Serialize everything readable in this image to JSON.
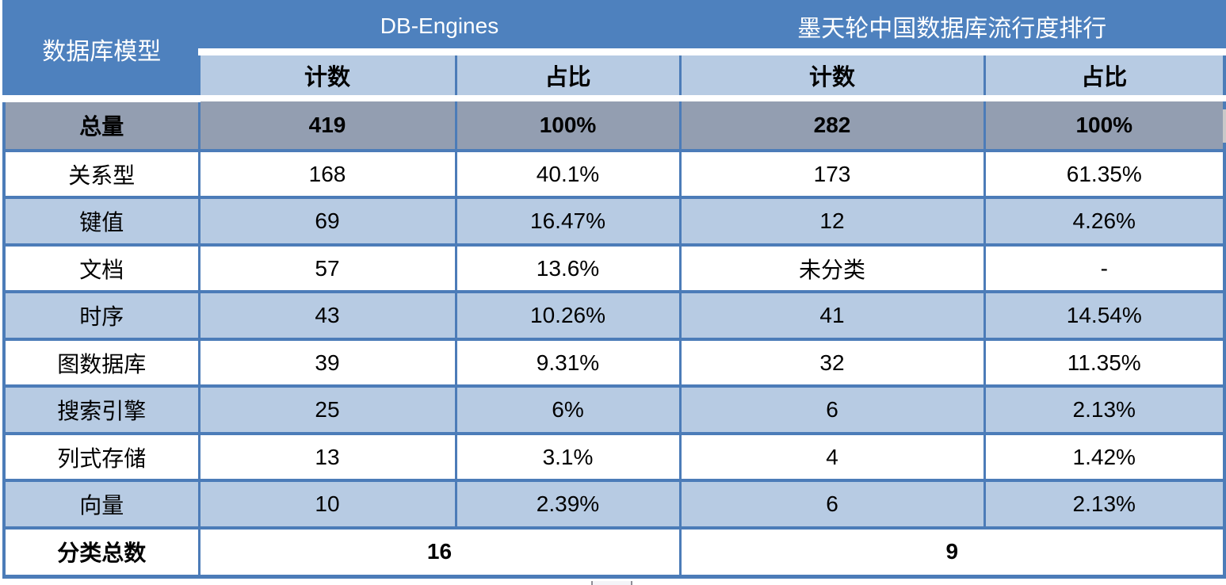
{
  "chart_data": {
    "type": "table",
    "corner_header": "数据库模型",
    "groups": [
      "DB-Engines",
      "墨天轮中国数据库流行度排行"
    ],
    "columns": [
      "计数",
      "占比",
      "计数",
      "占比"
    ],
    "total_row": {
      "label": "总量",
      "values": [
        "419",
        "100%",
        "282",
        "100%"
      ]
    },
    "data_rows": [
      {
        "label": "关系型",
        "values": [
          "168",
          "40.1%",
          "173",
          "61.35%"
        ]
      },
      {
        "label": "键值",
        "values": [
          "69",
          "16.47%",
          "12",
          "4.26%"
        ]
      },
      {
        "label": "文档",
        "values": [
          "57",
          "13.6%",
          "未分类",
          "-"
        ]
      },
      {
        "label": "时序",
        "values": [
          "43",
          "10.26%",
          "41",
          "14.54%"
        ]
      },
      {
        "label": "图数据库",
        "values": [
          "39",
          "9.31%",
          "32",
          "11.35%"
        ]
      },
      {
        "label": "搜索引擎",
        "values": [
          "25",
          "6%",
          "6",
          "2.13%"
        ]
      },
      {
        "label": "列式存储",
        "values": [
          "13",
          "3.1%",
          "4",
          "1.42%"
        ]
      },
      {
        "label": "向量",
        "values": [
          "10",
          "2.39%",
          "6",
          "2.13%"
        ]
      }
    ],
    "footer_row": {
      "label": "分类总数",
      "values": [
        "16",
        "9"
      ]
    }
  },
  "colors": {
    "header_blue": "#4E81BE",
    "light_blue": "#B7CBE3",
    "total_gray": "#939EB1",
    "border_blue": "#4C7CB8",
    "red_fragment": "#BE4B48",
    "text": "#000000",
    "header_text": "#FFFFFF"
  }
}
